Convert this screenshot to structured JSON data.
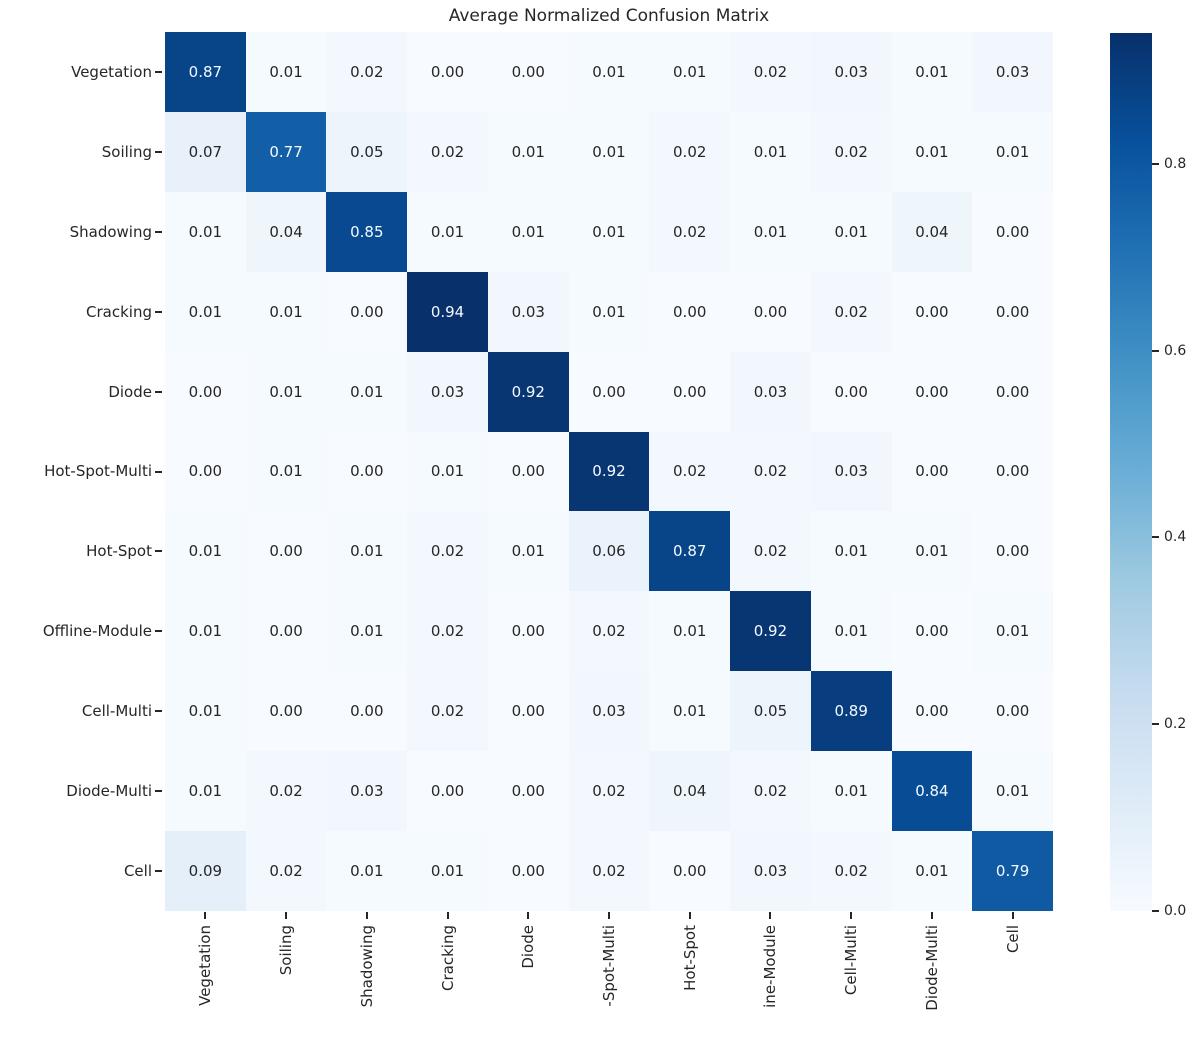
{
  "chart_data": {
    "type": "heatmap",
    "title": "Average Normalized Confusion Matrix",
    "y_labels": [
      "Vegetation",
      "Soiling",
      "Shadowing",
      "Cracking",
      "Diode",
      "Hot-Spot-Multi",
      "Hot-Spot",
      "Offline-Module",
      "Cell-Multi",
      "Diode-Multi",
      "Cell"
    ],
    "x_labels": [
      "Vegetation",
      "Soiling",
      "Shadowing",
      "Cracking",
      "Diode",
      "-Spot-Multi",
      "Hot-Spot",
      "ine-Module",
      "Cell-Multi",
      "Diode-Multi",
      "Cell"
    ],
    "matrix": [
      [
        0.87,
        0.01,
        0.02,
        0.0,
        0.0,
        0.01,
        0.01,
        0.02,
        0.03,
        0.01,
        0.03
      ],
      [
        0.07,
        0.77,
        0.05,
        0.02,
        0.01,
        0.01,
        0.02,
        0.01,
        0.02,
        0.01,
        0.01
      ],
      [
        0.01,
        0.04,
        0.85,
        0.01,
        0.01,
        0.01,
        0.02,
        0.01,
        0.01,
        0.04,
        0.0
      ],
      [
        0.01,
        0.01,
        0.0,
        0.94,
        0.03,
        0.01,
        0.0,
        0.0,
        0.02,
        0.0,
        0.0
      ],
      [
        0.0,
        0.01,
        0.01,
        0.03,
        0.92,
        0.0,
        0.0,
        0.03,
        0.0,
        0.0,
        0.0
      ],
      [
        0.0,
        0.01,
        0.0,
        0.01,
        0.0,
        0.92,
        0.02,
        0.02,
        0.03,
        0.0,
        0.0
      ],
      [
        0.01,
        0.0,
        0.01,
        0.02,
        0.01,
        0.06,
        0.87,
        0.02,
        0.01,
        0.01,
        0.0
      ],
      [
        0.01,
        0.0,
        0.01,
        0.02,
        0.0,
        0.02,
        0.01,
        0.92,
        0.01,
        0.0,
        0.01
      ],
      [
        0.01,
        0.0,
        0.0,
        0.02,
        0.0,
        0.03,
        0.01,
        0.05,
        0.89,
        0.0,
        0.0
      ],
      [
        0.01,
        0.02,
        0.03,
        0.0,
        0.0,
        0.02,
        0.04,
        0.02,
        0.01,
        0.84,
        0.01
      ],
      [
        0.09,
        0.02,
        0.01,
        0.01,
        0.0,
        0.02,
        0.0,
        0.03,
        0.02,
        0.01,
        0.79
      ]
    ],
    "value_decimals": 2,
    "vmin": 0.0,
    "vmax": 0.94,
    "colormap": "Blues",
    "colormap_stops": [
      [
        0.0,
        "#f7fbff"
      ],
      [
        0.125,
        "#deebf7"
      ],
      [
        0.25,
        "#c6dbef"
      ],
      [
        0.375,
        "#9ecae1"
      ],
      [
        0.5,
        "#6baed6"
      ],
      [
        0.625,
        "#4292c6"
      ],
      [
        0.75,
        "#2171b5"
      ],
      [
        0.875,
        "#08519c"
      ],
      [
        1.0,
        "#08306b"
      ]
    ],
    "annot_dark_color": "#262626",
    "annot_light_color": "#f5faff",
    "colorbar_ticks": [
      "0.0",
      "0.2",
      "0.4",
      "0.6",
      "0.8"
    ],
    "colorbar_position": "right",
    "grid": false,
    "legend": false
  }
}
